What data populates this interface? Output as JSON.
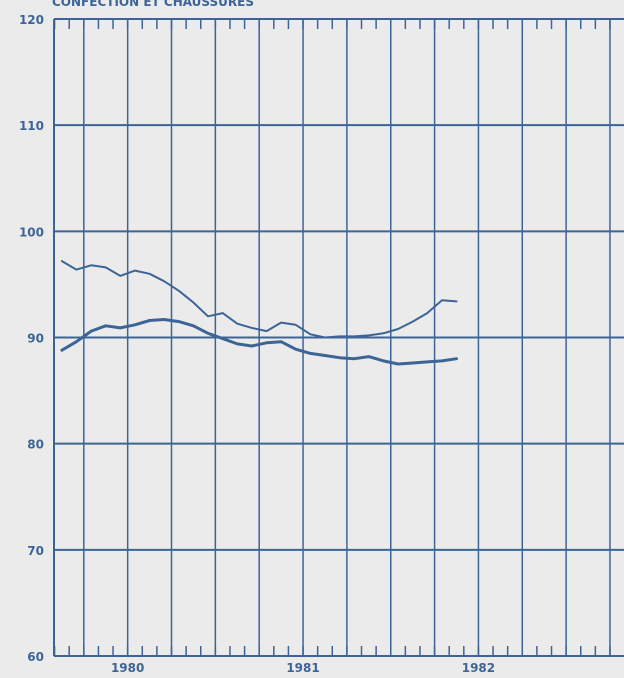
{
  "chart_data": {
    "type": "line",
    "title": "CONFECTION ET CHAUSSURES",
    "xlabel": "",
    "ylabel": "",
    "ylim": [
      60,
      120
    ],
    "yticks": [
      60,
      70,
      80,
      90,
      100,
      110,
      120
    ],
    "xlim": [
      1979.58,
      1982.83
    ],
    "year_labels": [
      {
        "label": "1980",
        "x": 1980.0
      },
      {
        "label": "1981",
        "x": 1981.0
      },
      {
        "label": "1982",
        "x": 1982.0
      }
    ],
    "grid": true,
    "colors": {
      "line": "#3d6496",
      "grid": "#3d6496",
      "background": "#ebebeb"
    },
    "x": [
      1979.625,
      1979.708,
      1979.792,
      1979.875,
      1979.958,
      1980.042,
      1980.125,
      1980.208,
      1980.292,
      1980.375,
      1980.458,
      1980.542,
      1980.625,
      1980.708,
      1980.792,
      1980.875,
      1980.958,
      1981.042,
      1981.125,
      1981.208,
      1981.292,
      1981.375,
      1981.458,
      1981.542,
      1981.625,
      1981.708,
      1981.792,
      1981.875
    ],
    "series": [
      {
        "values": [
          97.2,
          96.4,
          96.8,
          96.6,
          95.8,
          96.3,
          96.0,
          95.3,
          94.4,
          93.3,
          92.0,
          92.3,
          91.3,
          90.9,
          90.6,
          91.4,
          91.2,
          90.3,
          90.0,
          90.1,
          90.1,
          90.2,
          90.4,
          90.8,
          91.5,
          92.3,
          93.5,
          93.4
        ],
        "stroke": 2
      },
      {
        "values": [
          88.8,
          89.6,
          90.6,
          91.1,
          90.9,
          91.2,
          91.6,
          91.7,
          91.5,
          91.1,
          90.4,
          89.9,
          89.4,
          89.2,
          89.5,
          89.6,
          88.9,
          88.5,
          88.3,
          88.1,
          88.0,
          88.2,
          87.8,
          87.5,
          87.6,
          87.7,
          87.8,
          88.0
        ],
        "stroke": 3
      }
    ]
  }
}
